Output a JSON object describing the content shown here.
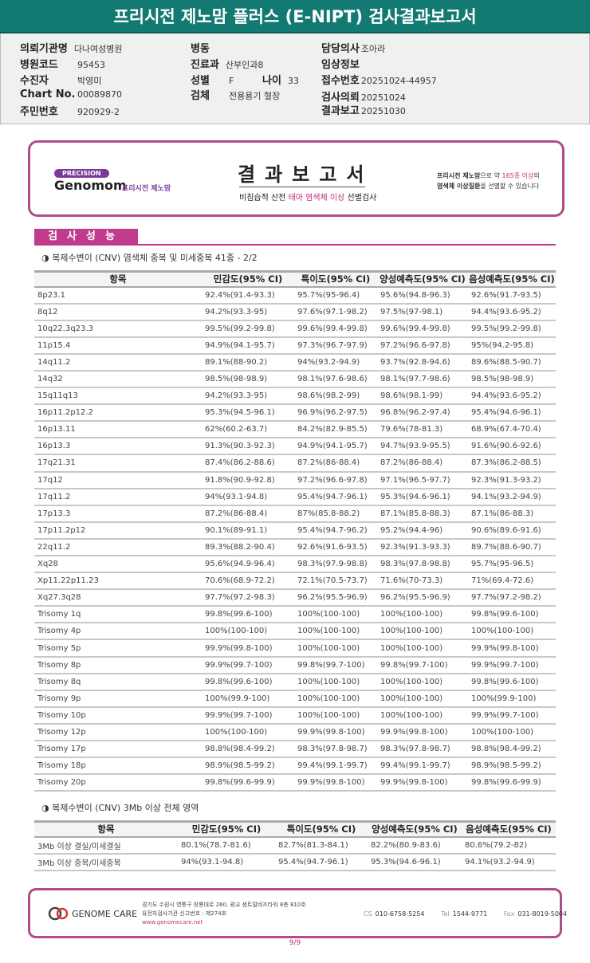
{
  "title": "프리시전 제노맘 플러스 (E-NIPT) 검사결과보고서",
  "info": {
    "institution": {
      "label": "의뢰기관명",
      "value": "다나여성병원"
    },
    "hospital_code": {
      "label": "병원코드",
      "value": "95453"
    },
    "patient": {
      "label": "수진자",
      "value": "박영미"
    },
    "chart_no": {
      "label": "Chart No.",
      "value": "00089870"
    },
    "resident_no": {
      "label": "주민번호",
      "value": "920929-2"
    },
    "ward": {
      "label": "병동",
      "value": ""
    },
    "department": {
      "label": "진료과",
      "value": "산부인과8"
    },
    "sex": {
      "label": "성별",
      "value": "F"
    },
    "age": {
      "label": "나이",
      "value": "33"
    },
    "specimen": {
      "label": "검체",
      "value": "전용용기 혈장"
    },
    "doctor": {
      "label": "담당의사",
      "value": "조아라"
    },
    "clinical_info": {
      "label": "임상정보",
      "value": ""
    },
    "receipt_no": {
      "label": "접수번호",
      "value": "20251024-44957"
    },
    "request_date": {
      "label": "검사의뢰",
      "value": "20251024"
    },
    "report_date": {
      "label": "결과보고",
      "value": "20251030"
    }
  },
  "report_header": {
    "logo_badge": "PRECISION",
    "logo_name": "Genomom",
    "logo_sub": "프리시전 제노맘",
    "title": "결과보고서",
    "subtitle_pre": "비침습적 산전 ",
    "subtitle_hl": "태아 염색체 이상",
    "subtitle_post": " 선별검사",
    "right_line1_a": "프리시전 제노맘",
    "right_line1_b": "으로 약 ",
    "right_line1_c": "165종 이상",
    "right_line1_d": "의",
    "right_line2_a": "염색체 이상질환",
    "right_line2_b": "을 선별할 수 있습니다"
  },
  "section_title": "검사성능",
  "table1": {
    "subtitle": "◑ 복제수변이 (CNV) 염색체 중복 및 미세중복 41종 - 2/2",
    "headers": [
      "항목",
      "민감도(95% CI)",
      "특이도(95% CI)",
      "양성예측도(95% CI)",
      "음성예측도(95% CI)"
    ],
    "rows": [
      [
        "8p23.1",
        "92.4%(91.4-93.3)",
        "95.7%(95-96.4)",
        "95.6%(94.8-96.3)",
        "92.6%(91.7-93.5)"
      ],
      [
        "8q12",
        "94.2%(93.3-95)",
        "97.6%(97.1-98.2)",
        "97.5%(97-98.1)",
        "94.4%(93.6-95.2)"
      ],
      [
        "10q22.3q23.3",
        "99.5%(99.2-99.8)",
        "99.6%(99.4-99.8)",
        "99.6%(99.4-99.8)",
        "99.5%(99.2-99.8)"
      ],
      [
        "11p15.4",
        "94.9%(94.1-95.7)",
        "97.3%(96.7-97.9)",
        "97.2%(96.6-97.8)",
        "95%(94.2-95.8)"
      ],
      [
        "14q11.2",
        "89.1%(88-90.2)",
        "94%(93.2-94.9)",
        "93.7%(92.8-94.6)",
        "89.6%(88.5-90.7)"
      ],
      [
        "14q32",
        "98.5%(98-98.9)",
        "98.1%(97.6-98.6)",
        "98.1%(97.7-98.6)",
        "98.5%(98-98.9)"
      ],
      [
        "15q11q13",
        "94.2%(93.3-95)",
        "98.6%(98.2-99)",
        "98.6%(98.1-99)",
        "94.4%(93.6-95.2)"
      ],
      [
        "16p11.2p12.2",
        "95.3%(94.5-96.1)",
        "96.9%(96.2-97.5)",
        "96.8%(96.2-97.4)",
        "95.4%(94.6-96.1)"
      ],
      [
        "16p13.11",
        "62%(60.2-63.7)",
        "84.2%(82.9-85.5)",
        "79.6%(78-81.3)",
        "68.9%(67.4-70.4)"
      ],
      [
        "16p13.3",
        "91.3%(90.3-92.3)",
        "94.9%(94.1-95.7)",
        "94.7%(93.9-95.5)",
        "91.6%(90.6-92.6)"
      ],
      [
        "17q21.31",
        "87.4%(86.2-88.6)",
        "87.2%(86-88.4)",
        "87.2%(86-88.4)",
        "87.3%(86.2-88.5)"
      ],
      [
        "17q12",
        "91.8%(90.9-92.8)",
        "97.2%(96.6-97.8)",
        "97.1%(96.5-97.7)",
        "92.3%(91.3-93.2)"
      ],
      [
        "17q11.2",
        "94%(93.1-94.8)",
        "95.4%(94.7-96.1)",
        "95.3%(94.6-96.1)",
        "94.1%(93.2-94.9)"
      ],
      [
        "17p13.3",
        "87.2%(86-88.4)",
        "87%(85.8-88.2)",
        "87.1%(85.8-88.3)",
        "87.1%(86-88.3)"
      ],
      [
        "17p11.2p12",
        "90.1%(89-91.1)",
        "95.4%(94.7-96.2)",
        "95.2%(94.4-96)",
        "90.6%(89.6-91.6)"
      ],
      [
        "22q11.2",
        "89.3%(88.2-90.4)",
        "92.6%(91.6-93.5)",
        "92.3%(91.3-93.3)",
        "89.7%(88.6-90.7)"
      ],
      [
        "Xq28",
        "95.6%(94.9-96.4)",
        "98.3%(97.9-98.8)",
        "98.3%(97.8-98.8)",
        "95.7%(95-96.5)"
      ],
      [
        "Xp11.22p11.23",
        "70.6%(68.9-72.2)",
        "72.1%(70.5-73.7)",
        "71.6%(70-73.3)",
        "71%(69.4-72.6)"
      ],
      [
        "Xq27.3q28",
        "97.7%(97.2-98.3)",
        "96.2%(95.5-96.9)",
        "96.2%(95.5-96.9)",
        "97.7%(97.2-98.2)"
      ],
      [
        "Trisomy 1q",
        "99.8%(99.6-100)",
        "100%(100-100)",
        "100%(100-100)",
        "99.8%(99.6-100)"
      ],
      [
        "Trisomy 4p",
        "100%(100-100)",
        "100%(100-100)",
        "100%(100-100)",
        "100%(100-100)"
      ],
      [
        "Trisomy 5p",
        "99.9%(99.8-100)",
        "100%(100-100)",
        "100%(100-100)",
        "99.9%(99.8-100)"
      ],
      [
        "Trisomy 8p",
        "99.9%(99.7-100)",
        "99.8%(99.7-100)",
        "99.8%(99.7-100)",
        "99.9%(99.7-100)"
      ],
      [
        "Trisomy 8q",
        "99.8%(99.6-100)",
        "100%(100-100)",
        "100%(100-100)",
        "99.8%(99.6-100)"
      ],
      [
        "Trisomy 9p",
        "100%(99.9-100)",
        "100%(100-100)",
        "100%(100-100)",
        "100%(99.9-100)"
      ],
      [
        "Trisomy 10p",
        "99.9%(99.7-100)",
        "100%(100-100)",
        "100%(100-100)",
        "99.9%(99.7-100)"
      ],
      [
        "Trisomy 12p",
        "100%(100-100)",
        "99.9%(99.8-100)",
        "99.9%(99.8-100)",
        "100%(100-100)"
      ],
      [
        "Trisomy 17p",
        "98.8%(98.4-99.2)",
        "98.3%(97.8-98.7)",
        "98.3%(97.8-98.7)",
        "98.8%(98.4-99.2)"
      ],
      [
        "Trisomy 18p",
        "98.9%(98.5-99.2)",
        "99.4%(99.1-99.7)",
        "99.4%(99.1-99.7)",
        "98.9%(98.5-99.2)"
      ],
      [
        "Trisomy 20p",
        "99.8%(99.6-99.9)",
        "99.9%(99.8-100)",
        "99.9%(99.8-100)",
        "99.8%(99.6-99.9)"
      ]
    ]
  },
  "table2": {
    "subtitle": "◑ 복제수변이 (CNV) 3Mb 이상 전체 영역",
    "headers": [
      "항목",
      "민감도(95% CI)",
      "특이도(95% CI)",
      "양성예측도(95% CI)",
      "음성예측도(95% CI)"
    ],
    "rows": [
      [
        "3Mb 이상 결실/미세결실",
        "80.1%(78.7-81.6)",
        "82.7%(81.3-84.1)",
        "82.2%(80.9-83.6)",
        "80.6%(79.2-82)"
      ],
      [
        "3Mb 이상 중복/미세중복",
        "94%(93.1-94.8)",
        "95.4%(94.7-96.1)",
        "95.3%(94.6-96.1)",
        "94.1%(93.2-94.9)"
      ]
    ]
  },
  "footer": {
    "logo": "GENOME CARE",
    "address": "경기도 수원시 영통구 창룡대로 260, 광교 센트럴비즈타워 8층 810호",
    "registration": "유전자검사기관 신고번호 : 제274호",
    "website": "www.genomecare.net",
    "cs_label": "CS",
    "cs": "010-6758-5254",
    "tel_label": "Tel",
    "tel": "1544-9771",
    "fax_label": "Fax",
    "fax": "031-8019-5004"
  },
  "page_number": "9/9",
  "colors": {
    "title_bar": "#137a73",
    "accent": "#c13b8d"
  }
}
